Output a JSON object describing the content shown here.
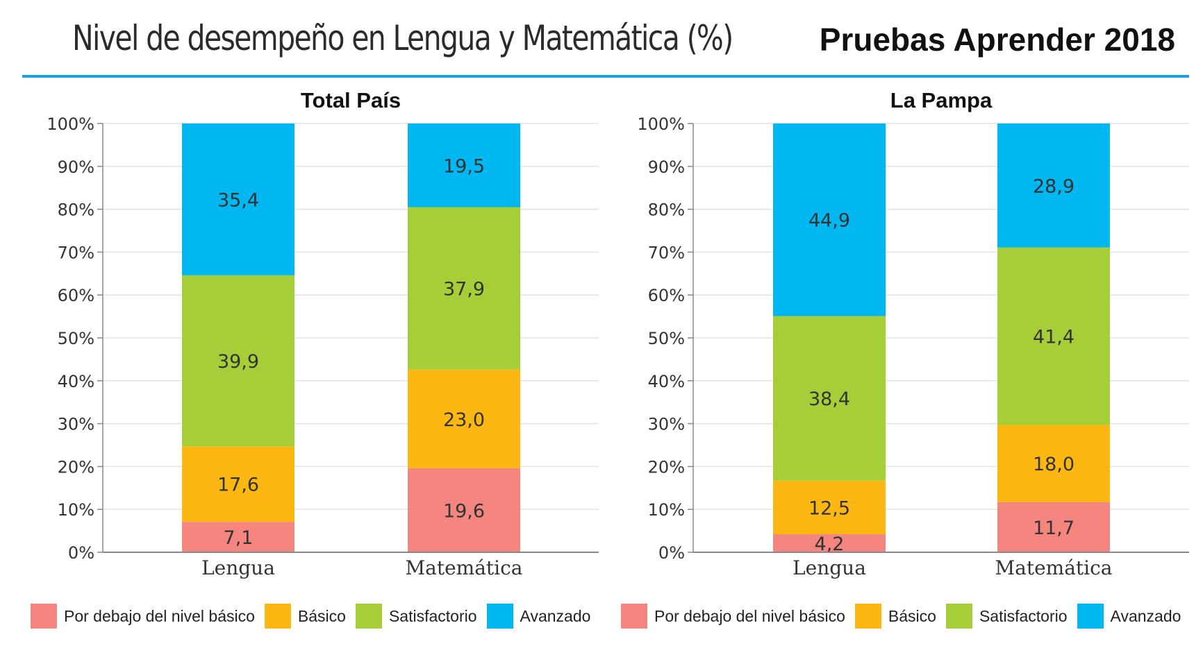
{
  "header": {
    "title": "Nivel de desempeño en Lengua y Matemática (%)",
    "right_title": "Pruebas Aprender 2018"
  },
  "colors": {
    "below": "#f4857f",
    "basic": "#fdb713",
    "satisfactory": "#a6ce39",
    "advanced": "#00b7f1",
    "rule": "#1ba3dd"
  },
  "legend": [
    {
      "label": "Por debajo del nivel básico",
      "color": "#f4857f"
    },
    {
      "label": "Básico",
      "color": "#fdb713"
    },
    {
      "label": "Satisfactorio",
      "color": "#a6ce39"
    },
    {
      "label": "Avanzado",
      "color": "#00b7f1"
    }
  ],
  "chart_data": [
    {
      "type": "bar",
      "stacked": true,
      "title": "Total País",
      "categories": [
        "Lengua",
        "Matemática"
      ],
      "series": [
        {
          "name": "Por debajo del nivel básico",
          "values": [
            7.1,
            19.6
          ],
          "labels": [
            "7,1",
            "19,6"
          ]
        },
        {
          "name": "Básico",
          "values": [
            17.6,
            23.0
          ],
          "labels": [
            "17,6",
            "23,0"
          ]
        },
        {
          "name": "Satisfactorio",
          "values": [
            39.9,
            37.9
          ],
          "labels": [
            "39,9",
            "37,9"
          ]
        },
        {
          "name": "Avanzado",
          "values": [
            35.4,
            19.5
          ],
          "labels": [
            "35,4",
            "19,5"
          ]
        }
      ],
      "ylim": [
        0,
        100
      ],
      "yticks": [
        "0%",
        "10%",
        "20%",
        "30%",
        "40%",
        "50%",
        "60%",
        "70%",
        "80%",
        "90%",
        "100%"
      ],
      "grid": true,
      "legend_position": "bottom"
    },
    {
      "type": "bar",
      "stacked": true,
      "title": "La Pampa",
      "categories": [
        "Lengua",
        "Matemática"
      ],
      "series": [
        {
          "name": "Por debajo del nivel básico",
          "values": [
            4.2,
            11.7
          ],
          "labels": [
            "4,2",
            "11,7"
          ]
        },
        {
          "name": "Básico",
          "values": [
            12.5,
            18.0
          ],
          "labels": [
            "12,5",
            "18,0"
          ]
        },
        {
          "name": "Satisfactorio",
          "values": [
            38.4,
            41.4
          ],
          "labels": [
            "38,4",
            "41,4"
          ]
        },
        {
          "name": "Avanzado",
          "values": [
            44.9,
            28.9
          ],
          "labels": [
            "44,9",
            "28,9"
          ]
        }
      ],
      "ylim": [
        0,
        100
      ],
      "yticks": [
        "0%",
        "10%",
        "20%",
        "30%",
        "40%",
        "50%",
        "60%",
        "70%",
        "80%",
        "90%",
        "100%"
      ],
      "grid": true,
      "legend_position": "bottom"
    }
  ]
}
